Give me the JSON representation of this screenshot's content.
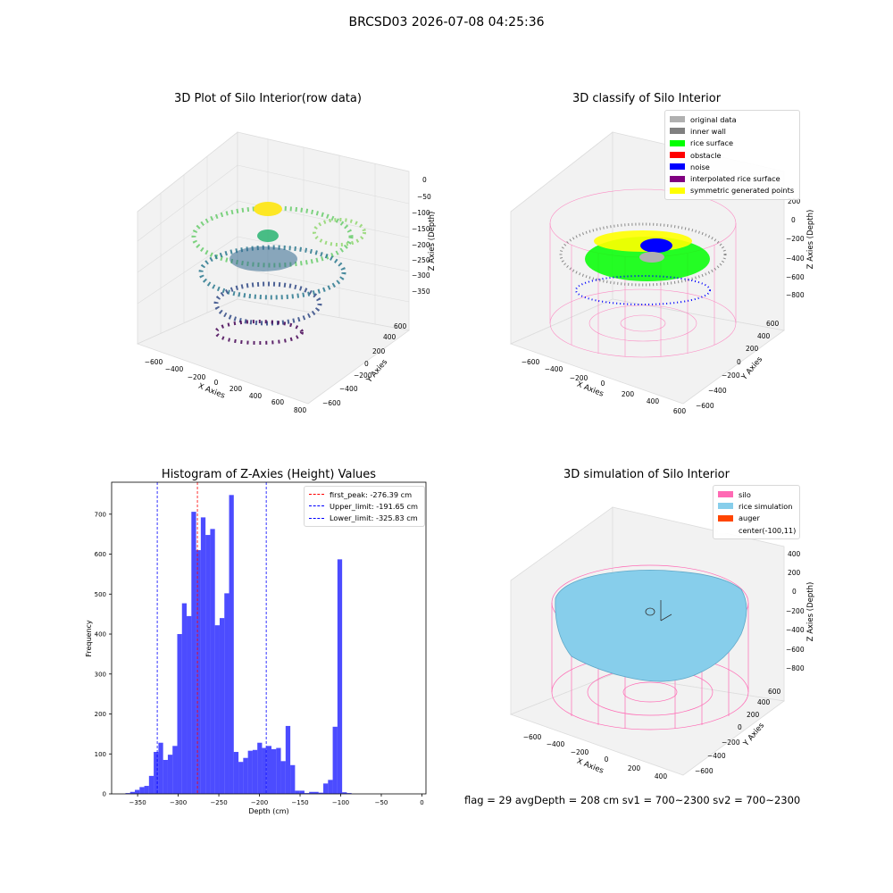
{
  "suptitle": "BRCSD03 2026-07-08 04:25:36",
  "footer": "flag = 29  avgDepth = 208 cm  sv1 = 700~2300  sv2 = 700~2300",
  "panels": {
    "raw": {
      "title": "3D Plot of Silo Interior(row data)",
      "xlabel": "X Axies",
      "ylabel": "Y Axies",
      "zlabel": "Z Axies (Depth)",
      "xticks": [
        "−600",
        "−400",
        "−200",
        "0",
        "200",
        "400",
        "600",
        "800"
      ],
      "yticks": [
        "−600",
        "−400",
        "−200",
        "0",
        "200",
        "400",
        "600"
      ],
      "zticks": [
        "0",
        "−50",
        "−100",
        "−150",
        "−200",
        "−250",
        "−300",
        "−350"
      ]
    },
    "classify": {
      "title": "3D classify of Silo Interior",
      "xlabel": "X Axies",
      "ylabel": "Y Axies",
      "zlabel": "Z Axies (Depth)",
      "xticks": [
        "−600",
        "−400",
        "−200",
        "0",
        "200",
        "400",
        "600"
      ],
      "yticks": [
        "−600",
        "−400",
        "−200",
        "0",
        "200",
        "400",
        "600"
      ],
      "zticks": [
        "200",
        "0",
        "−200",
        "−400",
        "−600",
        "−800"
      ],
      "legend": [
        {
          "label": "original data",
          "color": "#b0b0b0"
        },
        {
          "label": "inner wall",
          "color": "#808080"
        },
        {
          "label": "rice surface",
          "color": "#00ff00"
        },
        {
          "label": "obstacle",
          "color": "#ff0000"
        },
        {
          "label": "noise",
          "color": "#0000ff"
        },
        {
          "label": "interpolated rice surface",
          "color": "#800080"
        },
        {
          "label": "symmetric generated points",
          "color": "#ffff00"
        }
      ]
    },
    "simulation": {
      "title": "3D simulation of Silo Interior",
      "xlabel": "X Axies",
      "ylabel": "Y Axies",
      "zlabel": "Z Axies (Depth)",
      "xticks": [
        "−600",
        "−400",
        "−200",
        "0",
        "200",
        "400"
      ],
      "yticks": [
        "−600",
        "−400",
        "−200",
        "0",
        "200",
        "400",
        "600"
      ],
      "zticks": [
        "400",
        "200",
        "0",
        "−200",
        "−400",
        "−600",
        "−800"
      ],
      "legend": [
        {
          "label": "silo",
          "color": "#ff69b4"
        },
        {
          "label": "rice simulation",
          "color": "#87ceeb"
        },
        {
          "label": "auger",
          "color": "#ff4500"
        },
        {
          "label": "center(-100,11)",
          "color": "#ffffff"
        }
      ]
    }
  },
  "chart_data": {
    "type": "bar",
    "title": "Histogram of Z-Axies (Height) Values",
    "xlabel": "Depth (cm)",
    "ylabel": "Frequency",
    "xlim": [
      -382,
      5
    ],
    "ylim": [
      0,
      780
    ],
    "xticks": [
      -350,
      -300,
      -250,
      -200,
      -150,
      -100,
      -50,
      0
    ],
    "yticks": [
      0,
      100,
      200,
      300,
      400,
      500,
      600,
      700
    ],
    "bin_width": 5.8,
    "bin_start": -365,
    "values": [
      2,
      5,
      10,
      17,
      20,
      45,
      105,
      128,
      85,
      98,
      120,
      400,
      477,
      445,
      706,
      610,
      692,
      648,
      663,
      422,
      440,
      502,
      748,
      105,
      80,
      90,
      108,
      110,
      128,
      115,
      120,
      112,
      115,
      82,
      170,
      72,
      8,
      8,
      2,
      5,
      5,
      3,
      26,
      35,
      168,
      587,
      4,
      2
    ],
    "bar_color": "#0000ff",
    "lines": [
      {
        "label": "first_peak: -276.39 cm",
        "x": -276.39,
        "color": "#ff0000"
      },
      {
        "label": "Upper_limit: -191.65 cm",
        "x": -191.65,
        "color": "#0000ff"
      },
      {
        "label": "Lower_limit: -325.83 cm",
        "x": -325.83,
        "color": "#0000ff"
      }
    ]
  }
}
